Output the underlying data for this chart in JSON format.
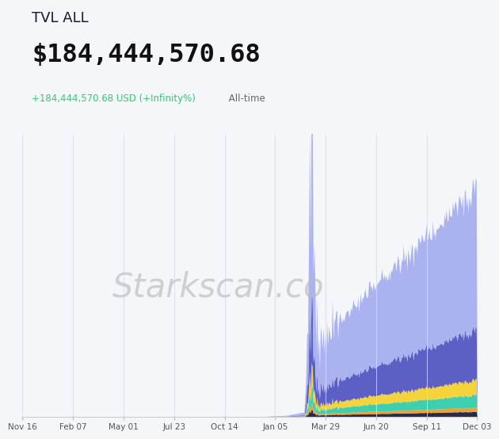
{
  "title_line1": "TVL ALL",
  "title_line2": "$184,444,570.68",
  "subtitle_green": "+184,444,570.68 USD (+Infinity%)",
  "subtitle_gray": " All-time",
  "subtitle_color": "#2ecc71",
  "bg_color": "#f5f6fa",
  "watermark": "Starkscan.co",
  "x_labels": [
    "Nov 16",
    "Feb 07",
    "May 01",
    "Jul 23",
    "Oct 14",
    "Jan 05",
    "Mar 29",
    "Jun 20",
    "Sep 11",
    "Dec 03"
  ],
  "colors": {
    "light_blue": "#aab2f0",
    "purple": "#5c5fc4",
    "teal": "#3ecfb0",
    "yellow": "#f5d33a",
    "orange": "#f0a030",
    "dark": "#2a2a4a"
  },
  "n_points": 500,
  "scale": 184444570.68
}
